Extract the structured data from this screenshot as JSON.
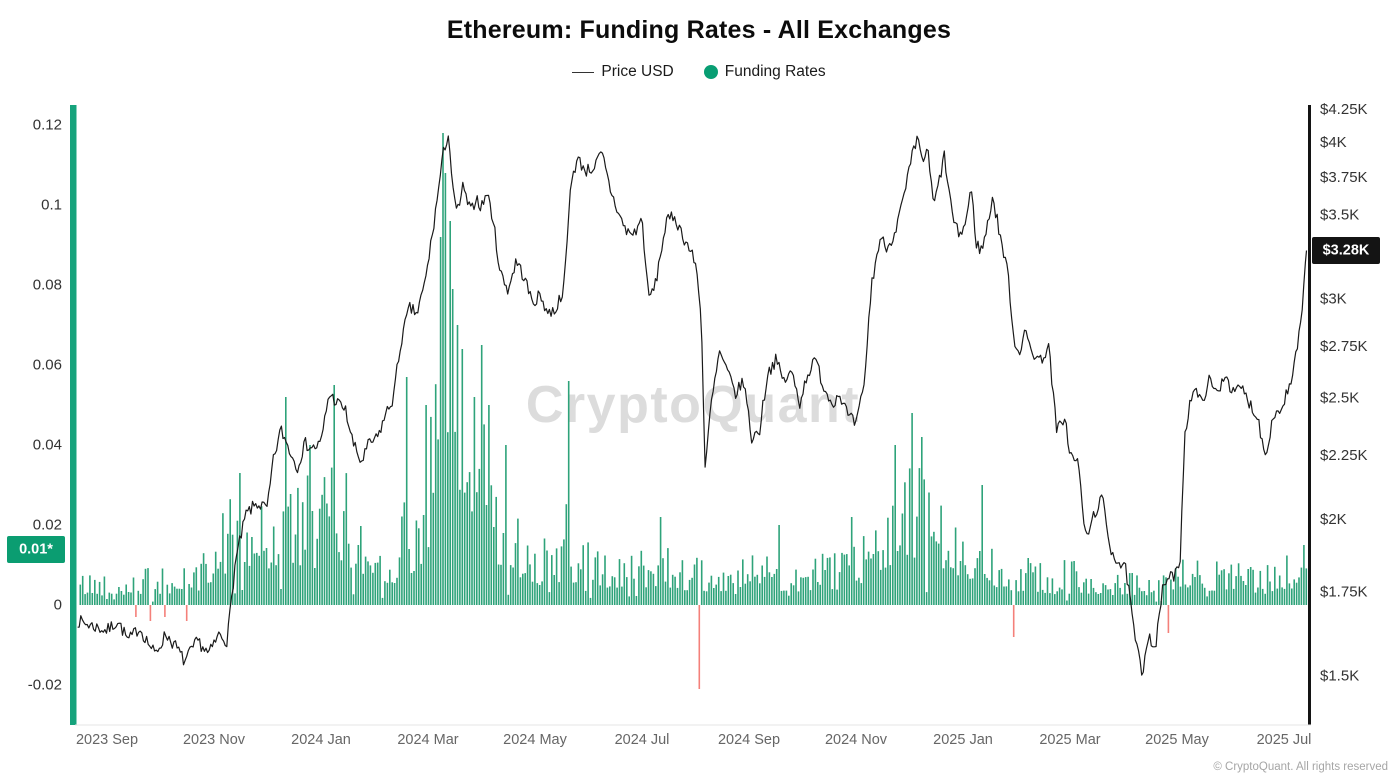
{
  "chart": {
    "title": "Ethereum: Funding Rates - All Exchanges",
    "watermark": "CryptoQuant",
    "copyright": "© CryptoQuant. All rights reserved",
    "legend": [
      {
        "label": "Price USD",
        "marker": "line",
        "color": "#333333"
      },
      {
        "label": "Funding Rates",
        "marker": "dot",
        "color": "#089e73"
      }
    ],
    "badges": {
      "left": {
        "label": "0.01*",
        "color": "#0b9d71",
        "text_color": "#ffffff"
      },
      "right": {
        "label": "$3.28K",
        "color": "#141414",
        "text_color": "#ffffff"
      }
    },
    "axes_colors": {
      "left_line": "#16a37c",
      "right_line": "#141414",
      "bottom_line": "#e4e4e4"
    }
  },
  "chart_data": {
    "type": "mixed",
    "title": "Ethereum: Funding Rates - All Exchanges",
    "x": {
      "tick_labels": [
        "2023 Sep",
        "2023 Nov",
        "2024 Jan",
        "2024 Mar",
        "2024 May",
        "2024 Jul",
        "2024 Sep",
        "2024 Nov",
        "2025 Jan",
        "2025 Mar",
        "2025 May",
        "2025 Jul"
      ],
      "unit": "months since 2023-09-01",
      "range": [
        -0.6,
        22.5
      ]
    },
    "left_axis": {
      "name": "Funding Rates",
      "ticks": [
        0.12,
        0.1,
        0.08,
        0.06,
        0.04,
        0.02,
        0,
        -0.02
      ],
      "latest_value": 0.01,
      "latest_label": "0.01*",
      "range": [
        -0.03,
        0.125
      ]
    },
    "right_axis": {
      "name": "Price USD",
      "scale": "log",
      "tick_labels": [
        "$4.25K",
        "$4K",
        "$3.75K",
        "$3.5K",
        "$3K",
        "$2.75K",
        "$2.5K",
        "$2.25K",
        "$2K",
        "$1.75K",
        "$1.5K"
      ],
      "tick_values": [
        4.25,
        4,
        3.75,
        3.5,
        3,
        2.75,
        2.5,
        2.25,
        2,
        1.75,
        1.5
      ],
      "current": {
        "label": "$3.28K",
        "value": 3.28
      }
    },
    "series": [
      {
        "name": "Price USD",
        "type": "line",
        "axis": "right",
        "color": "#1a1a1a",
        "unit": "$K",
        "keypoints": [
          [
            -0.55,
            1.66
          ],
          [
            0,
            1.63
          ],
          [
            0.2,
            1.66
          ],
          [
            0.4,
            1.6
          ],
          [
            0.6,
            1.64
          ],
          [
            0.9,
            1.56
          ],
          [
            1.1,
            1.62
          ],
          [
            1.3,
            1.58
          ],
          [
            1.45,
            1.54
          ],
          [
            1.7,
            1.6
          ],
          [
            1.9,
            1.56
          ],
          [
            2.1,
            1.62
          ],
          [
            2.25,
            1.6
          ],
          [
            2.4,
            1.85
          ],
          [
            2.6,
            2.02
          ],
          [
            2.8,
            2.06
          ],
          [
            3.0,
            2.04
          ],
          [
            3.1,
            2.22
          ],
          [
            3.25,
            2.36
          ],
          [
            3.4,
            2.28
          ],
          [
            3.55,
            2.2
          ],
          [
            3.7,
            2.3
          ],
          [
            3.85,
            2.28
          ],
          [
            4.0,
            2.3
          ],
          [
            4.15,
            2.52
          ],
          [
            4.3,
            2.48
          ],
          [
            4.45,
            2.45
          ],
          [
            4.6,
            2.3
          ],
          [
            4.75,
            2.22
          ],
          [
            4.9,
            2.3
          ],
          [
            5.05,
            2.32
          ],
          [
            5.2,
            2.42
          ],
          [
            5.35,
            2.5
          ],
          [
            5.5,
            2.78
          ],
          [
            5.65,
            2.95
          ],
          [
            5.8,
            2.92
          ],
          [
            5.95,
            3.1
          ],
          [
            6.1,
            3.42
          ],
          [
            6.2,
            3.68
          ],
          [
            6.3,
            3.95
          ],
          [
            6.38,
            4.07
          ],
          [
            6.48,
            3.6
          ],
          [
            6.55,
            3.52
          ],
          [
            6.65,
            3.68
          ],
          [
            6.8,
            3.52
          ],
          [
            6.9,
            3.62
          ],
          [
            7.0,
            3.55
          ],
          [
            7.1,
            3.65
          ],
          [
            7.2,
            3.5
          ],
          [
            7.35,
            3.15
          ],
          [
            7.5,
            3.05
          ],
          [
            7.65,
            3.22
          ],
          [
            7.8,
            3.12
          ],
          [
            7.95,
            2.98
          ],
          [
            8.1,
            3.02
          ],
          [
            8.25,
            2.92
          ],
          [
            8.4,
            2.95
          ],
          [
            8.55,
            3.08
          ],
          [
            8.68,
            3.75
          ],
          [
            8.8,
            3.88
          ],
          [
            8.95,
            3.8
          ],
          [
            9.1,
            3.82
          ],
          [
            9.25,
            3.92
          ],
          [
            9.4,
            3.68
          ],
          [
            9.55,
            3.52
          ],
          [
            9.7,
            3.4
          ],
          [
            9.85,
            3.38
          ],
          [
            10.0,
            3.48
          ],
          [
            10.12,
            3.0
          ],
          [
            10.25,
            3.08
          ],
          [
            10.45,
            3.45
          ],
          [
            10.6,
            3.5
          ],
          [
            10.75,
            3.38
          ],
          [
            10.9,
            3.28
          ],
          [
            11.0,
            3.2
          ],
          [
            11.1,
            2.95
          ],
          [
            11.18,
            2.2
          ],
          [
            11.3,
            2.48
          ],
          [
            11.45,
            2.72
          ],
          [
            11.6,
            2.62
          ],
          [
            11.75,
            2.52
          ],
          [
            11.9,
            2.58
          ],
          [
            12.05,
            2.32
          ],
          [
            12.2,
            2.36
          ],
          [
            12.35,
            2.62
          ],
          [
            12.5,
            2.68
          ],
          [
            12.65,
            2.58
          ],
          [
            12.8,
            2.62
          ],
          [
            12.95,
            2.48
          ],
          [
            13.1,
            2.62
          ],
          [
            13.25,
            2.68
          ],
          [
            13.4,
            2.55
          ],
          [
            13.55,
            2.48
          ],
          [
            13.7,
            2.52
          ],
          [
            13.85,
            2.42
          ],
          [
            14.0,
            2.38
          ],
          [
            14.15,
            2.55
          ],
          [
            14.3,
            3.1
          ],
          [
            14.45,
            3.35
          ],
          [
            14.6,
            3.3
          ],
          [
            14.75,
            3.42
          ],
          [
            14.9,
            3.62
          ],
          [
            15.05,
            3.9
          ],
          [
            15.15,
            4.02
          ],
          [
            15.25,
            3.88
          ],
          [
            15.35,
            3.92
          ],
          [
            15.45,
            3.55
          ],
          [
            15.55,
            3.72
          ],
          [
            15.65,
            3.9
          ],
          [
            15.75,
            3.62
          ],
          [
            15.85,
            3.42
          ],
          [
            15.95,
            3.38
          ],
          [
            16.05,
            3.45
          ],
          [
            16.15,
            3.68
          ],
          [
            16.25,
            3.32
          ],
          [
            16.35,
            3.28
          ],
          [
            16.45,
            3.42
          ],
          [
            16.55,
            3.62
          ],
          [
            16.65,
            3.45
          ],
          [
            16.75,
            3.28
          ],
          [
            16.85,
            3.12
          ],
          [
            16.95,
            2.78
          ],
          [
            17.05,
            2.72
          ],
          [
            17.15,
            2.82
          ],
          [
            17.3,
            2.72
          ],
          [
            17.45,
            2.68
          ],
          [
            17.6,
            2.75
          ],
          [
            17.75,
            2.35
          ],
          [
            17.9,
            2.42
          ],
          [
            18.0,
            2.25
          ],
          [
            18.15,
            2.22
          ],
          [
            18.3,
            1.92
          ],
          [
            18.45,
            2.02
          ],
          [
            18.6,
            2.08
          ],
          [
            18.75,
            1.9
          ],
          [
            18.9,
            1.85
          ],
          [
            19.05,
            1.82
          ],
          [
            19.2,
            1.62
          ],
          [
            19.35,
            1.5
          ],
          [
            19.45,
            1.62
          ],
          [
            19.6,
            1.58
          ],
          [
            19.75,
            1.78
          ],
          [
            19.9,
            1.8
          ],
          [
            20.05,
            1.82
          ],
          [
            20.15,
            2.35
          ],
          [
            20.3,
            2.55
          ],
          [
            20.45,
            2.48
          ],
          [
            20.6,
            2.58
          ],
          [
            20.75,
            2.52
          ],
          [
            20.9,
            2.62
          ],
          [
            21.05,
            2.52
          ],
          [
            21.2,
            2.55
          ],
          [
            21.35,
            2.48
          ],
          [
            21.5,
            2.42
          ],
          [
            21.65,
            2.25
          ],
          [
            21.8,
            2.42
          ],
          [
            21.95,
            2.45
          ],
          [
            22.05,
            2.52
          ],
          [
            22.15,
            2.58
          ],
          [
            22.25,
            2.75
          ],
          [
            22.35,
            2.95
          ],
          [
            22.42,
            3.28
          ]
        ]
      },
      {
        "name": "Funding Rates",
        "type": "bar",
        "axis": "left",
        "color": "#2ea37a",
        "negative_color": "#f4807a",
        "envelope": [
          [
            -0.5,
            0.008
          ],
          [
            0,
            0.008
          ],
          [
            0.6,
            0.009
          ],
          [
            1.2,
            0.009
          ],
          [
            1.8,
            0.012
          ],
          [
            2.2,
            0.026
          ],
          [
            2.6,
            0.03
          ],
          [
            3.0,
            0.024
          ],
          [
            3.3,
            0.034
          ],
          [
            3.6,
            0.03
          ],
          [
            4.0,
            0.03
          ],
          [
            4.2,
            0.048
          ],
          [
            4.5,
            0.03
          ],
          [
            4.8,
            0.022
          ],
          [
            5.1,
            0.018
          ],
          [
            5.4,
            0.018
          ],
          [
            5.7,
            0.026
          ],
          [
            6.0,
            0.04
          ],
          [
            6.2,
            0.06
          ],
          [
            6.35,
            0.075
          ],
          [
            6.5,
            0.062
          ],
          [
            6.7,
            0.048
          ],
          [
            6.9,
            0.042
          ],
          [
            7.1,
            0.048
          ],
          [
            7.3,
            0.034
          ],
          [
            7.6,
            0.024
          ],
          [
            7.9,
            0.019
          ],
          [
            8.2,
            0.015
          ],
          [
            8.5,
            0.018
          ],
          [
            8.8,
            0.015
          ],
          [
            9.1,
            0.015
          ],
          [
            9.4,
            0.013
          ],
          [
            9.7,
            0.013
          ],
          [
            10.0,
            0.014
          ],
          [
            10.3,
            0.016
          ],
          [
            10.7,
            0.013
          ],
          [
            11.0,
            0.011
          ],
          [
            11.4,
            0.01
          ],
          [
            11.8,
            0.012
          ],
          [
            12.2,
            0.011
          ],
          [
            12.6,
            0.012
          ],
          [
            13.0,
            0.011
          ],
          [
            13.4,
            0.012
          ],
          [
            13.8,
            0.012
          ],
          [
            14.1,
            0.016
          ],
          [
            14.4,
            0.028
          ],
          [
            14.7,
            0.034
          ],
          [
            15.0,
            0.036
          ],
          [
            15.3,
            0.032
          ],
          [
            15.6,
            0.026
          ],
          [
            15.9,
            0.02
          ],
          [
            16.2,
            0.022
          ],
          [
            16.5,
            0.016
          ],
          [
            16.8,
            0.013
          ],
          [
            17.1,
            0.011
          ],
          [
            17.4,
            0.011
          ],
          [
            17.7,
            0.009
          ],
          [
            18.0,
            0.011
          ],
          [
            18.4,
            0.009
          ],
          [
            18.8,
            0.008
          ],
          [
            19.2,
            0.008
          ],
          [
            19.6,
            0.008
          ],
          [
            20.0,
            0.01
          ],
          [
            20.4,
            0.012
          ],
          [
            20.8,
            0.01
          ],
          [
            21.2,
            0.011
          ],
          [
            21.6,
            0.009
          ],
          [
            22.0,
            0.011
          ],
          [
            22.4,
            0.014
          ]
        ],
        "spikes": [
          [
            2.5,
            0.033
          ],
          [
            3.35,
            0.052
          ],
          [
            3.8,
            0.04
          ],
          [
            4.25,
            0.055
          ],
          [
            5.62,
            0.057
          ],
          [
            5.95,
            0.05
          ],
          [
            6.22,
            0.092
          ],
          [
            6.28,
            0.118
          ],
          [
            6.33,
            0.108
          ],
          [
            6.4,
            0.096
          ],
          [
            6.47,
            0.079
          ],
          [
            6.55,
            0.07
          ],
          [
            6.62,
            0.064
          ],
          [
            6.88,
            0.052
          ],
          [
            7.0,
            0.065
          ],
          [
            7.15,
            0.05
          ],
          [
            7.45,
            0.04
          ],
          [
            8.62,
            0.056
          ],
          [
            10.35,
            0.022
          ],
          [
            12.55,
            0.02
          ],
          [
            13.9,
            0.022
          ],
          [
            14.75,
            0.04
          ],
          [
            15.05,
            0.048
          ],
          [
            15.25,
            0.042
          ],
          [
            16.35,
            0.03
          ],
          [
            22.38,
            0.015
          ]
        ],
        "negatives": [
          [
            0.55,
            -0.003
          ],
          [
            0.8,
            -0.004
          ],
          [
            1.1,
            -0.003
          ],
          [
            1.5,
            -0.004
          ],
          [
            11.05,
            -0.021
          ],
          [
            16.95,
            -0.008
          ],
          [
            19.85,
            -0.007
          ]
        ]
      }
    ]
  }
}
